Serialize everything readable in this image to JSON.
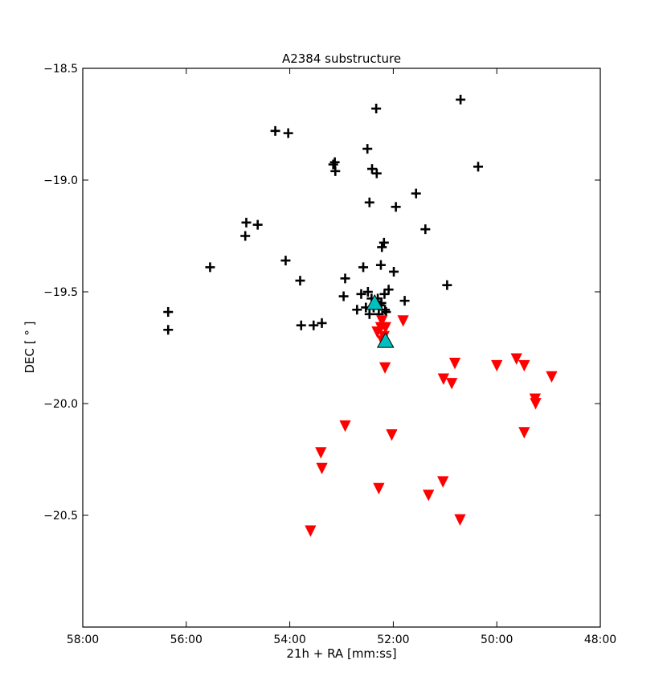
{
  "chart_data": {
    "type": "scatter",
    "title": "A2384 substructure",
    "xlabel": "21h + RA [mm:ss]",
    "ylabel": "DEC [$^\\circ$]",
    "ylabel_display": "DEC [ ° ]",
    "x_unit": "minutes of RA (21h + mm)",
    "xlim": [
      58.0,
      48.0
    ],
    "x_inverted": true,
    "ylim": [
      -21.0,
      -18.5
    ],
    "x_ticks": [
      58,
      56,
      54,
      52,
      50,
      48
    ],
    "x_tick_labels": [
      "58:00",
      "56:00",
      "54:00",
      "52:00",
      "50:00",
      "48:00"
    ],
    "y_ticks": [
      -18.5,
      -19.0,
      -19.5,
      -20.0,
      -20.5
    ],
    "y_tick_labels": [
      "−18.5",
      "−19.0",
      "−19.5",
      "−20.0",
      "−20.5"
    ],
    "grid": false,
    "legend": null,
    "series": [
      {
        "marker": "plus",
        "color": "#000000",
        "points": [
          [
            50.7,
            -18.64
          ],
          [
            52.33,
            -18.68
          ],
          [
            54.28,
            -18.78
          ],
          [
            54.03,
            -18.79
          ],
          [
            50.36,
            -18.94
          ],
          [
            52.5,
            -18.86
          ],
          [
            53.16,
            -18.93
          ],
          [
            53.13,
            -18.92
          ],
          [
            53.12,
            -18.96
          ],
          [
            52.41,
            -18.95
          ],
          [
            52.32,
            -18.97
          ],
          [
            51.56,
            -19.06
          ],
          [
            52.46,
            -19.1
          ],
          [
            51.95,
            -19.12
          ],
          [
            54.84,
            -19.19
          ],
          [
            54.62,
            -19.2
          ],
          [
            54.86,
            -19.25
          ],
          [
            51.38,
            -19.22
          ],
          [
            52.18,
            -19.28
          ],
          [
            52.22,
            -19.3
          ],
          [
            55.54,
            -19.39
          ],
          [
            54.08,
            -19.36
          ],
          [
            52.24,
            -19.38
          ],
          [
            52.58,
            -19.39
          ],
          [
            51.99,
            -19.41
          ],
          [
            53.8,
            -19.45
          ],
          [
            52.93,
            -19.44
          ],
          [
            50.96,
            -19.47
          ],
          [
            52.62,
            -19.51
          ],
          [
            52.96,
            -19.52
          ],
          [
            52.49,
            -19.5
          ],
          [
            52.09,
            -19.49
          ],
          [
            52.17,
            -19.51
          ],
          [
            51.78,
            -19.54
          ],
          [
            52.3,
            -19.53
          ],
          [
            52.23,
            -19.55
          ],
          [
            52.53,
            -19.57
          ],
          [
            52.7,
            -19.58
          ],
          [
            52.38,
            -19.57
          ],
          [
            52.16,
            -19.58
          ],
          [
            56.35,
            -19.59
          ],
          [
            56.35,
            -19.67
          ],
          [
            53.78,
            -19.65
          ],
          [
            53.54,
            -19.65
          ],
          [
            53.38,
            -19.64
          ],
          [
            52.46,
            -19.6
          ],
          [
            52.28,
            -19.6
          ],
          [
            52.14,
            -19.59
          ],
          [
            52.26,
            -19.56
          ],
          [
            52.42,
            -19.53
          ]
        ]
      },
      {
        "marker": "triangle-down",
        "color": "#ff0000",
        "points": [
          [
            51.81,
            -19.63
          ],
          [
            52.22,
            -19.63
          ],
          [
            52.24,
            -19.66
          ],
          [
            52.15,
            -19.66
          ],
          [
            52.31,
            -19.68
          ],
          [
            52.18,
            -19.7
          ],
          [
            52.21,
            -19.72
          ],
          [
            52.16,
            -19.84
          ],
          [
            50.81,
            -19.82
          ],
          [
            49.62,
            -19.8
          ],
          [
            49.47,
            -19.83
          ],
          [
            50.0,
            -19.83
          ],
          [
            48.94,
            -19.88
          ],
          [
            51.03,
            -19.89
          ],
          [
            50.87,
            -19.91
          ],
          [
            49.26,
            -19.98
          ],
          [
            49.25,
            -20.0
          ],
          [
            52.93,
            -20.1
          ],
          [
            52.03,
            -20.14
          ],
          [
            49.47,
            -20.13
          ],
          [
            53.4,
            -20.22
          ],
          [
            53.38,
            -20.29
          ],
          [
            51.04,
            -20.35
          ],
          [
            52.28,
            -20.38
          ],
          [
            51.32,
            -20.41
          ],
          [
            50.71,
            -20.52
          ],
          [
            53.6,
            -20.57
          ]
        ]
      },
      {
        "marker": "triangle-up",
        "color": "#00bfbf",
        "points": [
          [
            52.36,
            -19.55
          ],
          [
            52.15,
            -19.72
          ]
        ]
      }
    ]
  }
}
